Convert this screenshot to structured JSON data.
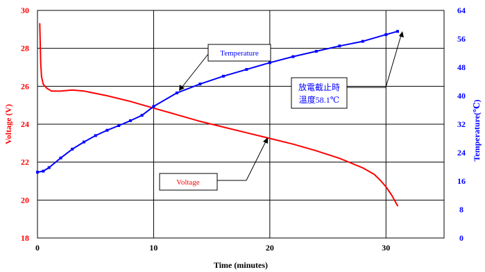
{
  "chart_data": {
    "type": "line",
    "xlabel": "Time (minutes)",
    "ylabel_left": "Voltage (V)",
    "ylabel_right": "Temperature(℃)",
    "xlim": [
      0,
      35
    ],
    "ylim_left": [
      18,
      30
    ],
    "ylim_right": [
      0,
      64
    ],
    "x_ticks": [
      "0",
      "10",
      "20",
      "30"
    ],
    "y_left_ticks": [
      "18",
      "20",
      "22",
      "24",
      "26",
      "28",
      "30"
    ],
    "y_right_ticks": [
      "0",
      "8",
      "16",
      "24",
      "32",
      "40",
      "48",
      "56",
      "64"
    ],
    "grid": true,
    "colors": {
      "voltage": "#ff0000",
      "temperature": "#0000ff",
      "grid": "#000000"
    },
    "series": [
      {
        "name": "Voltage",
        "axis": "left",
        "color": "#ff0000",
        "x": [
          0.2,
          0.28,
          0.35,
          0.5,
          0.8,
          1.2,
          2,
          3,
          4,
          6,
          8,
          10,
          12,
          14,
          16,
          18,
          20,
          22,
          24,
          26,
          27,
          28,
          29,
          29.5,
          30,
          30.5,
          31
        ],
        "y": [
          29.3,
          27.2,
          26.5,
          26.1,
          25.9,
          25.75,
          25.75,
          25.8,
          25.75,
          25.5,
          25.2,
          24.85,
          24.5,
          24.15,
          23.85,
          23.55,
          23.25,
          22.95,
          22.6,
          22.2,
          21.95,
          21.7,
          21.35,
          21.05,
          20.7,
          20.25,
          19.7
        ]
      },
      {
        "name": "Temperature",
        "axis": "right",
        "color": "#0000ff",
        "x": [
          0,
          0.5,
          1,
          2,
          3,
          4,
          5,
          6,
          7,
          8,
          9,
          10,
          12,
          14,
          16,
          18,
          20,
          22,
          24,
          26,
          28,
          30,
          31
        ],
        "y": [
          18.5,
          18.8,
          19.8,
          22.5,
          25,
          27,
          28.8,
          30.3,
          31.6,
          33,
          34.5,
          37,
          40.8,
          43.3,
          45.5,
          47.4,
          49.3,
          51,
          52.5,
          54,
          55.3,
          57.2,
          58.1
        ]
      }
    ],
    "annotations": [
      {
        "id": "temperature_callout",
        "text": "Temperature"
      },
      {
        "id": "voltage_callout",
        "text": "Voltage"
      },
      {
        "id": "end_note",
        "lines": [
          "放電截止時",
          "溫度58.1℃"
        ]
      }
    ]
  }
}
